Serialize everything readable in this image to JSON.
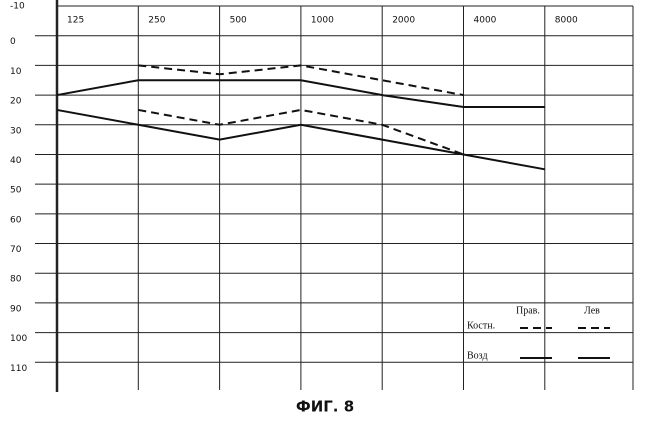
{
  "chart_data": {
    "type": "line",
    "title": "ФИГ. 8",
    "categories": [
      "125",
      "250",
      "500",
      "1000",
      "2000",
      "4000",
      "8000"
    ],
    "ylim": [
      -10,
      120
    ],
    "yticks": [
      -10,
      0,
      10,
      20,
      30,
      40,
      50,
      60,
      70,
      80,
      90,
      100,
      110
    ],
    "y_inverted": true,
    "grid": true,
    "legend": {
      "columns": [
        "Прав.",
        "Лев"
      ],
      "rows": [
        "Костн.",
        "Возд"
      ]
    },
    "series": [
      {
        "legend_row": 0,
        "legend_col": 0,
        "dashed": true,
        "color": "#111111",
        "values": [
          null,
          10,
          13,
          10,
          15,
          20,
          null
        ]
      },
      {
        "legend_row": 0,
        "legend_col": 1,
        "dashed": true,
        "color": "#111111",
        "values": [
          null,
          25,
          30,
          25,
          30,
          40,
          null
        ]
      },
      {
        "legend_row": 1,
        "legend_col": 0,
        "dashed": false,
        "color": "#111111",
        "values": [
          20,
          15,
          15,
          15,
          20,
          24,
          24
        ]
      },
      {
        "legend_row": 1,
        "legend_col": 1,
        "dashed": false,
        "color": "#111111",
        "values": [
          25,
          30,
          35,
          30,
          35,
          40,
          45
        ]
      }
    ]
  }
}
